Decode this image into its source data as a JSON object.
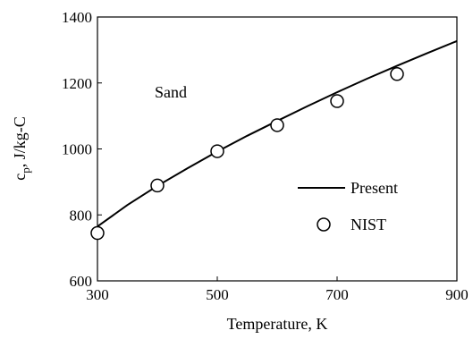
{
  "chart_data": {
    "type": "line",
    "xlabel": "Temperature, K",
    "ylabel_main": "c",
    "ylabel_sub": "p",
    "ylabel_rest": ", J/kg-C",
    "xlim": [
      300,
      900
    ],
    "ylim": [
      600,
      1400
    ],
    "xticks": [
      "300",
      "500",
      "700",
      "900"
    ],
    "yticks": [
      "600",
      "800",
      "1000",
      "1200",
      "1400"
    ],
    "grid": false,
    "annotation": "Sand",
    "legend_position": "bottom-right",
    "series": [
      {
        "name": "Present",
        "style": "solid-line",
        "x": [
          300,
          350,
          400,
          450,
          500,
          550,
          600,
          650,
          700,
          750,
          800,
          850,
          900
        ],
        "y": [
          765,
          830,
          888,
          941,
          992,
          1040,
          1085,
          1129,
          1172,
          1213,
          1252,
          1290,
          1327
        ]
      },
      {
        "name": "NIST",
        "style": "open-circle",
        "x": [
          300,
          400,
          500,
          600,
          700,
          800
        ],
        "y": [
          745,
          889,
          993,
          1072,
          1145,
          1227
        ]
      }
    ]
  }
}
